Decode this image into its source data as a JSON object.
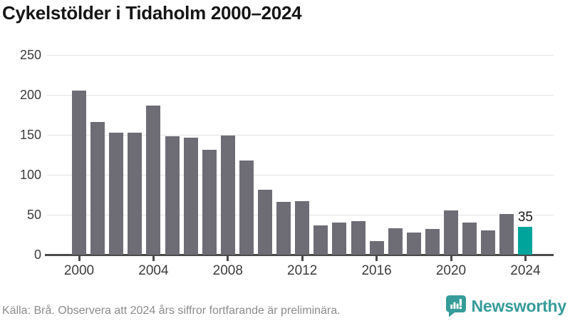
{
  "title": "Cykelstölder i Tidaholm 2000–2024",
  "chart_data": {
    "type": "bar",
    "title": "Cykelstölder i Tidaholm 2000–2024",
    "categories": [
      "2000",
      "2001",
      "2002",
      "2003",
      "2004",
      "2005",
      "2006",
      "2007",
      "2008",
      "2009",
      "2010",
      "2011",
      "2012",
      "2013",
      "2014",
      "2015",
      "2016",
      "2017",
      "2018",
      "2019",
      "2020",
      "2021",
      "2022",
      "2023",
      "2024"
    ],
    "values": [
      205,
      166,
      153,
      153,
      187,
      148,
      146,
      131,
      149,
      118,
      81,
      66,
      67,
      37,
      40,
      42,
      17,
      33,
      28,
      32,
      55,
      40,
      30,
      51,
      35
    ],
    "highlight": {
      "category": "2024",
      "value": 35,
      "label": "35"
    },
    "ylim": [
      0,
      250
    ],
    "yticks": [
      0,
      50,
      100,
      150,
      200,
      250
    ],
    "xtick_labels": [
      "2000",
      "2004",
      "2008",
      "2012",
      "2016",
      "2020",
      "2024"
    ],
    "bar_color": "#6e6d76",
    "highlight_color": "#00a49a",
    "grid": true,
    "legend": "none",
    "xlabel": "",
    "ylabel": ""
  },
  "footer": {
    "source": "Källa: Brå. Observera att 2024 års siffror fortfarande är preliminära.",
    "brand": "Newsworthy",
    "logo_icon": "newsworthy-speech-bubble-chart-icon"
  },
  "colors": {
    "background": "#ffffff",
    "title_text": "#161616",
    "axis_text": "#3c3c3c",
    "grid_line": "#e3e3e3",
    "axis_line": "#4a4a4a",
    "source_text": "#8b8b8b",
    "bar_gray": "#6e6d76",
    "bar_teal": "#00a49a",
    "brand_teal": "#359c99"
  }
}
